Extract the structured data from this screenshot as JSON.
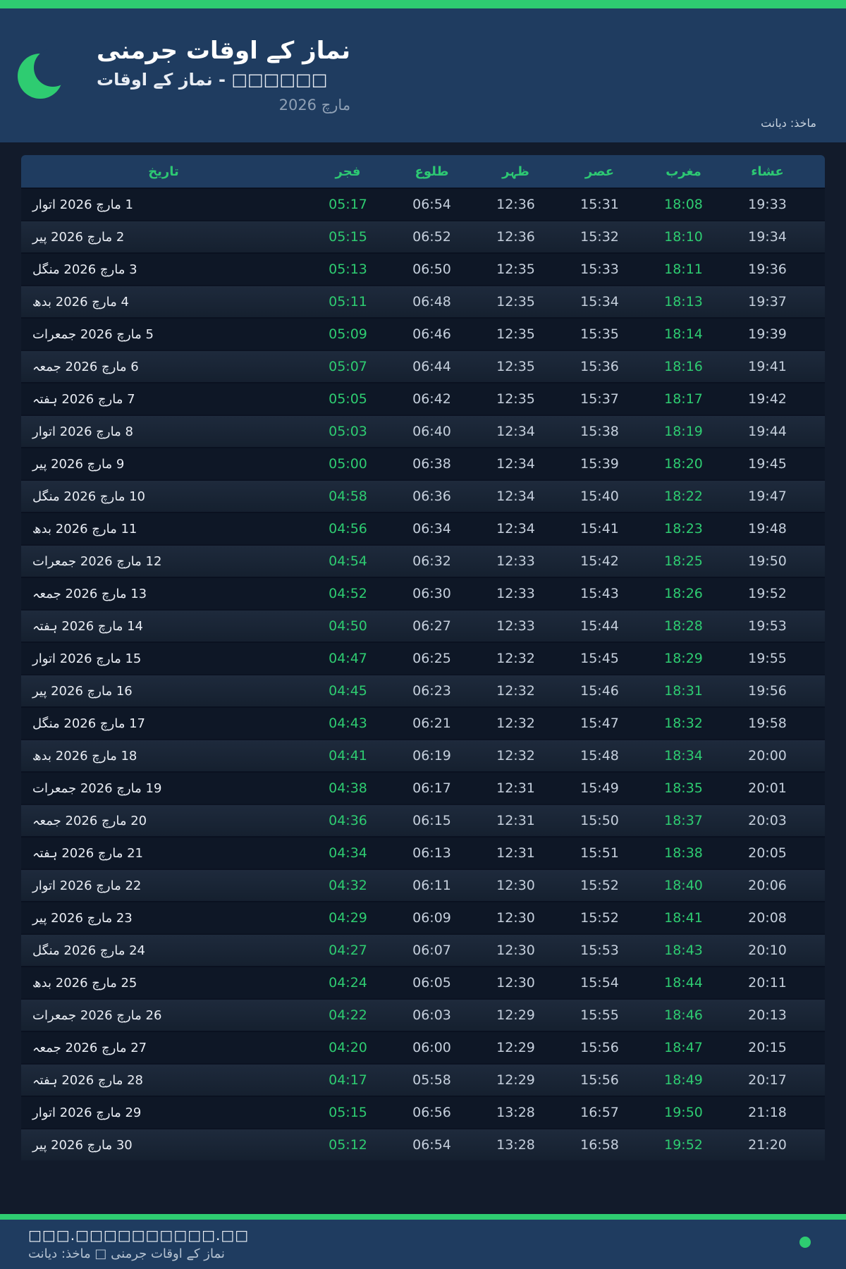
{
  "header": {
    "title": "نماز کے اوقات جرمنی",
    "subtitle": "نماز کے اوقات - □□□□□□",
    "month_year": "مارچ 2026",
    "source": "ماخذ: دیانت"
  },
  "colors": {
    "accent_green": "#2ecc71",
    "header_navy": "#1f3c60",
    "page_background": "#121b2b",
    "row_dark": "#0e1726",
    "row_light": "#1b2636",
    "time_text": "#c5cfdc",
    "highlight_time_text": "#2ecc71"
  },
  "table": {
    "columns": [
      "تاریخ",
      "فجر",
      "طلوع",
      "ظہر",
      "عصر",
      "مغرب",
      "عشاء"
    ],
    "rows": [
      {
        "date": "1 مارچ 2026 اتوار",
        "fajr": "05:17",
        "sunrise": "06:54",
        "zuhr": "12:36",
        "asr": "15:31",
        "maghrib": "18:08",
        "isha": "19:33"
      },
      {
        "date": "2 مارچ 2026 پیر",
        "fajr": "05:15",
        "sunrise": "06:52",
        "zuhr": "12:36",
        "asr": "15:32",
        "maghrib": "18:10",
        "isha": "19:34"
      },
      {
        "date": "3 مارچ 2026 منگل",
        "fajr": "05:13",
        "sunrise": "06:50",
        "zuhr": "12:35",
        "asr": "15:33",
        "maghrib": "18:11",
        "isha": "19:36"
      },
      {
        "date": "4 مارچ 2026 بدھ",
        "fajr": "05:11",
        "sunrise": "06:48",
        "zuhr": "12:35",
        "asr": "15:34",
        "maghrib": "18:13",
        "isha": "19:37"
      },
      {
        "date": "5 مارچ 2026 جمعرات",
        "fajr": "05:09",
        "sunrise": "06:46",
        "zuhr": "12:35",
        "asr": "15:35",
        "maghrib": "18:14",
        "isha": "19:39"
      },
      {
        "date": "6 مارچ 2026 جمعہ",
        "fajr": "05:07",
        "sunrise": "06:44",
        "zuhr": "12:35",
        "asr": "15:36",
        "maghrib": "18:16",
        "isha": "19:41"
      },
      {
        "date": "7 مارچ 2026 ہفتہ",
        "fajr": "05:05",
        "sunrise": "06:42",
        "zuhr": "12:35",
        "asr": "15:37",
        "maghrib": "18:17",
        "isha": "19:42"
      },
      {
        "date": "8 مارچ 2026 اتوار",
        "fajr": "05:03",
        "sunrise": "06:40",
        "zuhr": "12:34",
        "asr": "15:38",
        "maghrib": "18:19",
        "isha": "19:44"
      },
      {
        "date": "9 مارچ 2026 پیر",
        "fajr": "05:00",
        "sunrise": "06:38",
        "zuhr": "12:34",
        "asr": "15:39",
        "maghrib": "18:20",
        "isha": "19:45"
      },
      {
        "date": "10 مارچ 2026 منگل",
        "fajr": "04:58",
        "sunrise": "06:36",
        "zuhr": "12:34",
        "asr": "15:40",
        "maghrib": "18:22",
        "isha": "19:47"
      },
      {
        "date": "11 مارچ 2026 بدھ",
        "fajr": "04:56",
        "sunrise": "06:34",
        "zuhr": "12:34",
        "asr": "15:41",
        "maghrib": "18:23",
        "isha": "19:48"
      },
      {
        "date": "12 مارچ 2026 جمعرات",
        "fajr": "04:54",
        "sunrise": "06:32",
        "zuhr": "12:33",
        "asr": "15:42",
        "maghrib": "18:25",
        "isha": "19:50"
      },
      {
        "date": "13 مارچ 2026 جمعہ",
        "fajr": "04:52",
        "sunrise": "06:30",
        "zuhr": "12:33",
        "asr": "15:43",
        "maghrib": "18:26",
        "isha": "19:52"
      },
      {
        "date": "14 مارچ 2026 ہفتہ",
        "fajr": "04:50",
        "sunrise": "06:27",
        "zuhr": "12:33",
        "asr": "15:44",
        "maghrib": "18:28",
        "isha": "19:53"
      },
      {
        "date": "15 مارچ 2026 اتوار",
        "fajr": "04:47",
        "sunrise": "06:25",
        "zuhr": "12:32",
        "asr": "15:45",
        "maghrib": "18:29",
        "isha": "19:55"
      },
      {
        "date": "16 مارچ 2026 پیر",
        "fajr": "04:45",
        "sunrise": "06:23",
        "zuhr": "12:32",
        "asr": "15:46",
        "maghrib": "18:31",
        "isha": "19:56"
      },
      {
        "date": "17 مارچ 2026 منگل",
        "fajr": "04:43",
        "sunrise": "06:21",
        "zuhr": "12:32",
        "asr": "15:47",
        "maghrib": "18:32",
        "isha": "19:58"
      },
      {
        "date": "18 مارچ 2026 بدھ",
        "fajr": "04:41",
        "sunrise": "06:19",
        "zuhr": "12:32",
        "asr": "15:48",
        "maghrib": "18:34",
        "isha": "20:00"
      },
      {
        "date": "19 مارچ 2026 جمعرات",
        "fajr": "04:38",
        "sunrise": "06:17",
        "zuhr": "12:31",
        "asr": "15:49",
        "maghrib": "18:35",
        "isha": "20:01"
      },
      {
        "date": "20 مارچ 2026 جمعہ",
        "fajr": "04:36",
        "sunrise": "06:15",
        "zuhr": "12:31",
        "asr": "15:50",
        "maghrib": "18:37",
        "isha": "20:03"
      },
      {
        "date": "21 مارچ 2026 ہفتہ",
        "fajr": "04:34",
        "sunrise": "06:13",
        "zuhr": "12:31",
        "asr": "15:51",
        "maghrib": "18:38",
        "isha": "20:05"
      },
      {
        "date": "22 مارچ 2026 اتوار",
        "fajr": "04:32",
        "sunrise": "06:11",
        "zuhr": "12:30",
        "asr": "15:52",
        "maghrib": "18:40",
        "isha": "20:06"
      },
      {
        "date": "23 مارچ 2026 پیر",
        "fajr": "04:29",
        "sunrise": "06:09",
        "zuhr": "12:30",
        "asr": "15:52",
        "maghrib": "18:41",
        "isha": "20:08"
      },
      {
        "date": "24 مارچ 2026 منگل",
        "fajr": "04:27",
        "sunrise": "06:07",
        "zuhr": "12:30",
        "asr": "15:53",
        "maghrib": "18:43",
        "isha": "20:10"
      },
      {
        "date": "25 مارچ 2026 بدھ",
        "fajr": "04:24",
        "sunrise": "06:05",
        "zuhr": "12:30",
        "asr": "15:54",
        "maghrib": "18:44",
        "isha": "20:11"
      },
      {
        "date": "26 مارچ 2026 جمعرات",
        "fajr": "04:22",
        "sunrise": "06:03",
        "zuhr": "12:29",
        "asr": "15:55",
        "maghrib": "18:46",
        "isha": "20:13"
      },
      {
        "date": "27 مارچ 2026 جمعہ",
        "fajr": "04:20",
        "sunrise": "06:00",
        "zuhr": "12:29",
        "asr": "15:56",
        "maghrib": "18:47",
        "isha": "20:15"
      },
      {
        "date": "28 مارچ 2026 ہفتہ",
        "fajr": "04:17",
        "sunrise": "05:58",
        "zuhr": "12:29",
        "asr": "15:56",
        "maghrib": "18:49",
        "isha": "20:17"
      },
      {
        "date": "29 مارچ 2026 اتوار",
        "fajr": "05:15",
        "sunrise": "06:56",
        "zuhr": "13:28",
        "asr": "16:57",
        "maghrib": "19:50",
        "isha": "21:18"
      },
      {
        "date": "30 مارچ 2026 پیر",
        "fajr": "05:12",
        "sunrise": "06:54",
        "zuhr": "13:28",
        "asr": "16:58",
        "maghrib": "19:52",
        "isha": "21:20"
      }
    ]
  },
  "footer": {
    "url": "□□□.□□□□□□□□□□.□□",
    "credit": "نماز کے اوقات جرمنی □ ماخذ: دیانت"
  }
}
